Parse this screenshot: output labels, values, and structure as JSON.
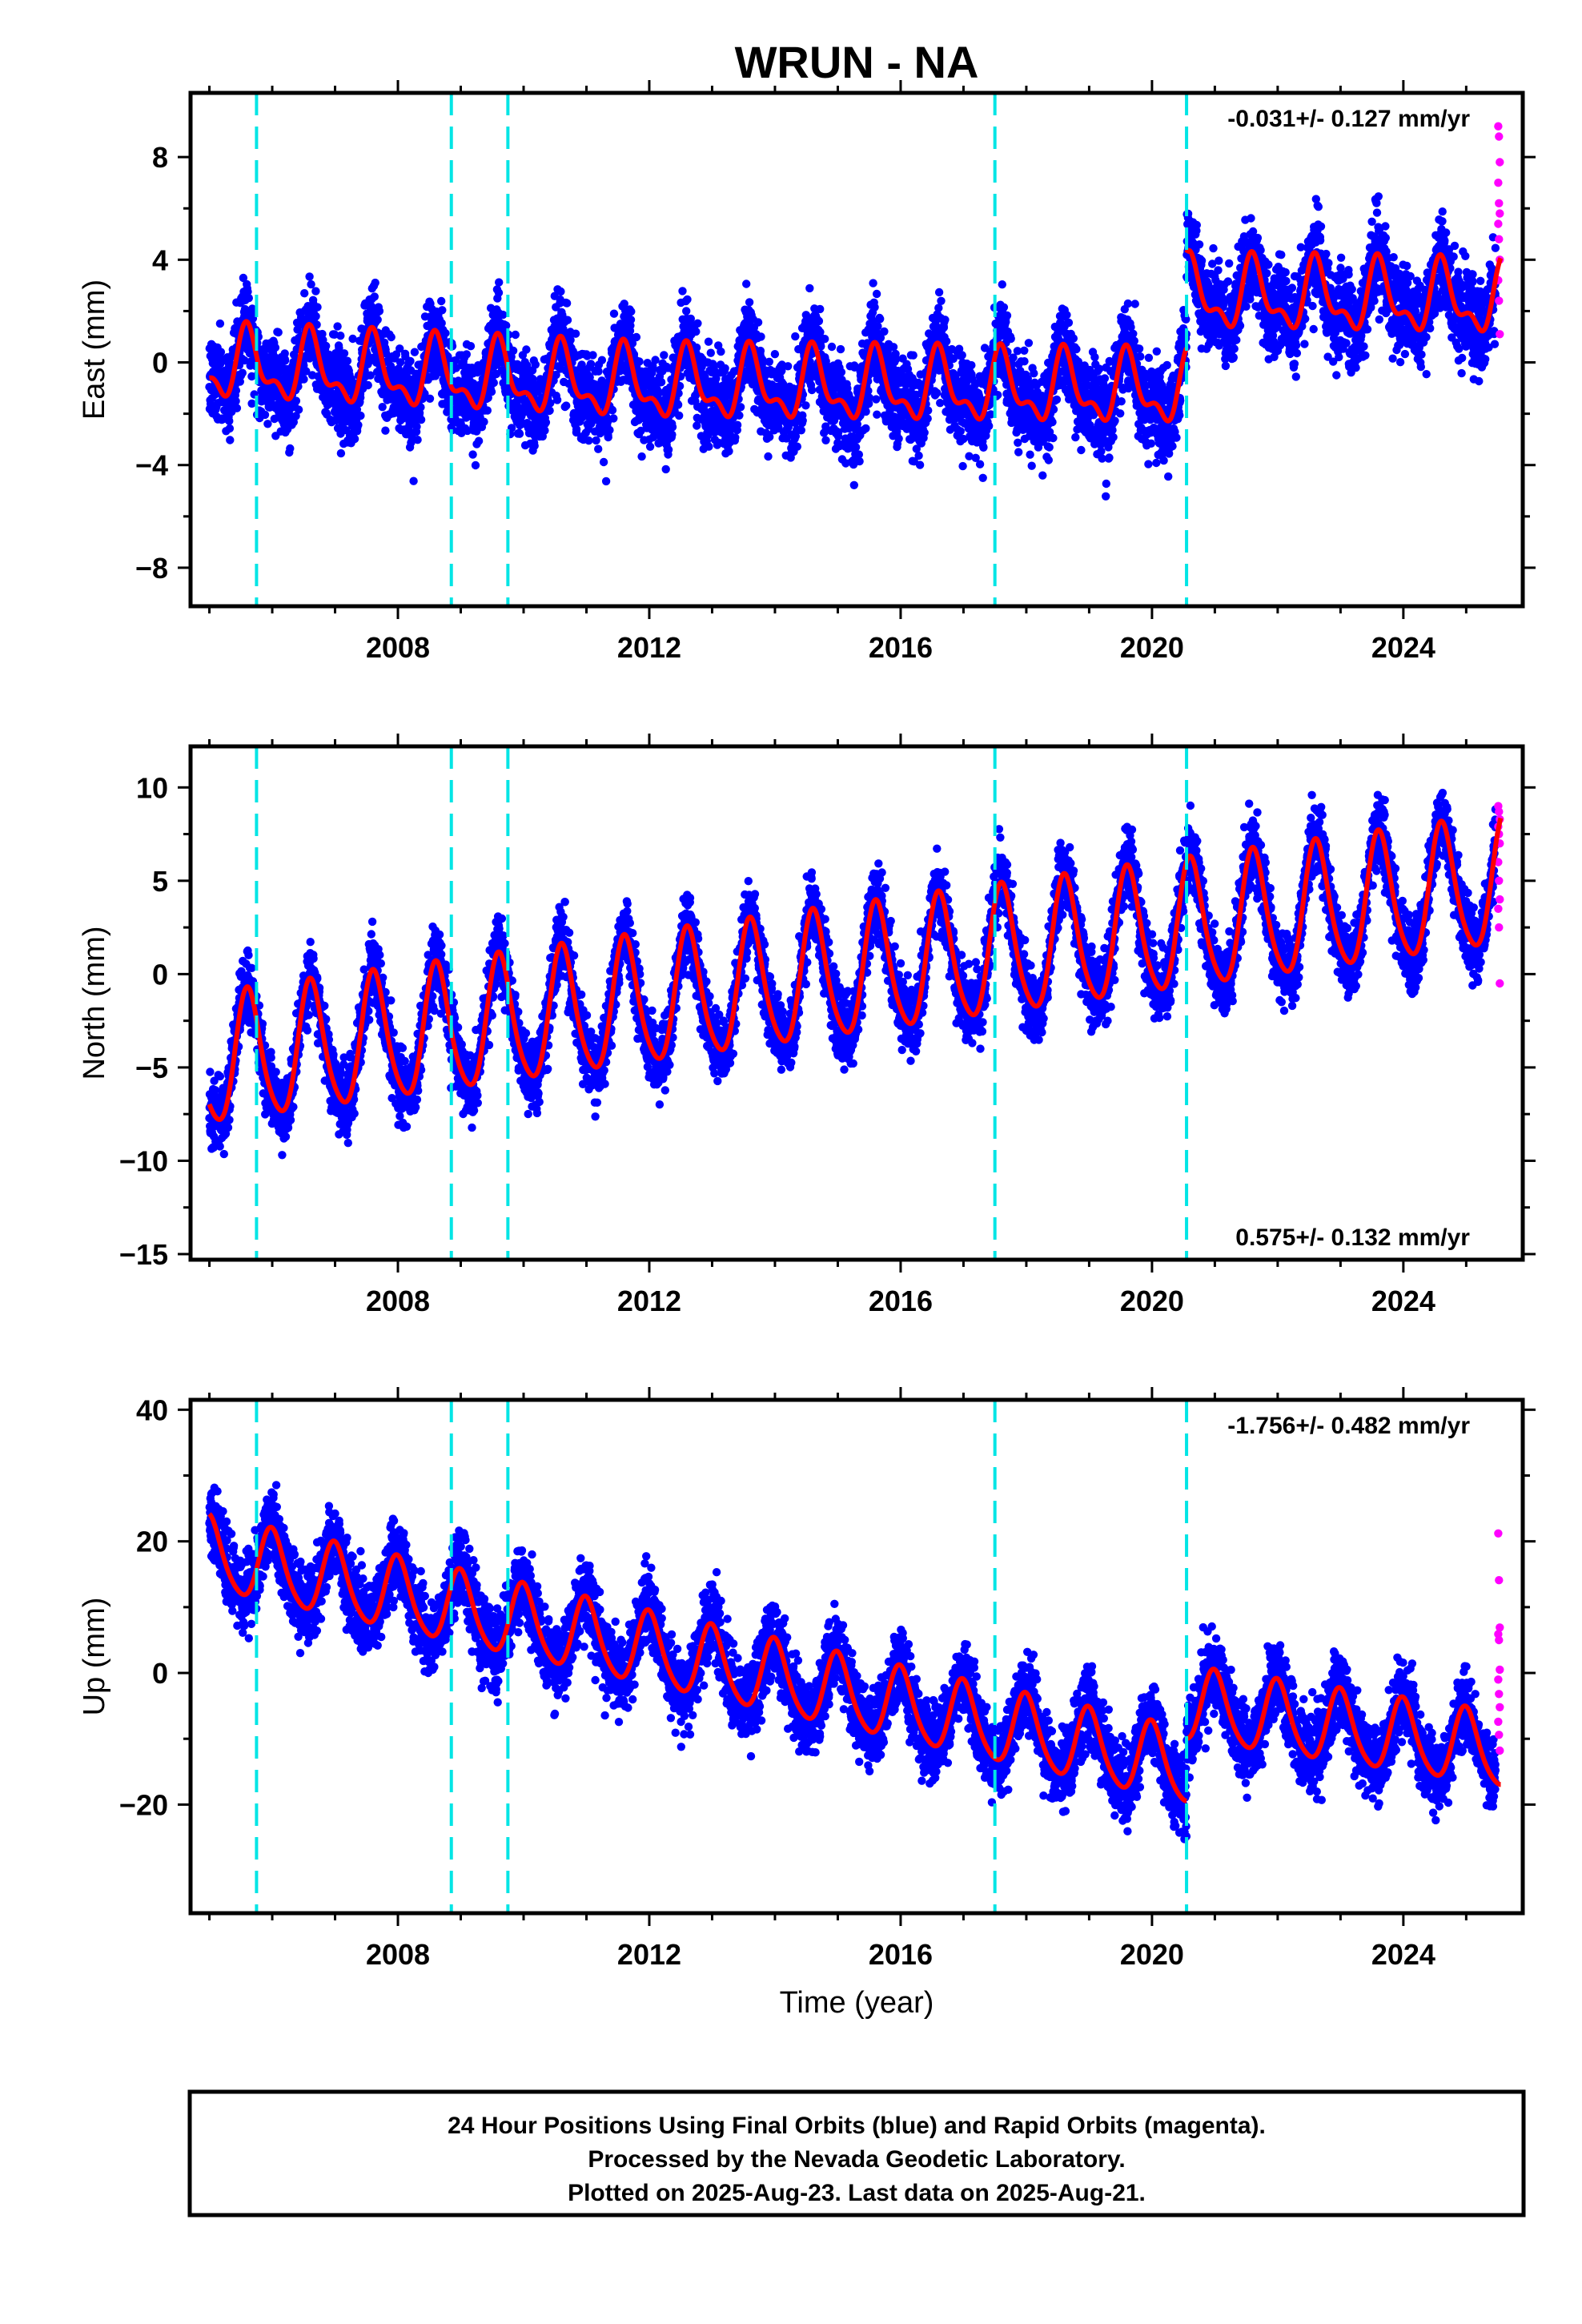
{
  "title": "WRUN - NA",
  "colors": {
    "final_orbits": "#0000ff",
    "rapid_orbits": "#ff00ff",
    "model_fit": "#ff0000",
    "equipment_change": "#00e5e5",
    "axes": "#000000"
  },
  "x_axis": {
    "label": "Time (year)",
    "ticks": [
      2008,
      2012,
      2016,
      2020,
      2024
    ],
    "xlim": [
      2004.7,
      2025.9
    ]
  },
  "chart_data": [
    {
      "type": "scatter",
      "name": "east",
      "ylabel": "East (mm)",
      "ylim": [
        -9.5,
        10.5
      ],
      "yticks": [
        -8,
        -4,
        0,
        4,
        8
      ],
      "rate_label": "-0.031+/- 0.127 mm/yr",
      "rate_position": "top-right",
      "start": 2005.0,
      "end": 2025.55,
      "seasonal": {
        "amp1": 1.2,
        "amp2": 0.6,
        "phase": 0.62
      },
      "segments": [
        {
          "from": 2005.0,
          "to": 2012.0,
          "offset_start": -0.1,
          "offset_end": -0.9
        },
        {
          "from": 2012.0,
          "to": 2020.55,
          "offset_start": -0.9,
          "offset_end": -1.1
        },
        {
          "from": 2020.55,
          "to": 2025.55,
          "offset_start": 2.6,
          "offset_end": 2.4
        }
      ],
      "noise_sd": 1.2,
      "rapid_points": [
        9.2,
        8.8,
        7.8,
        7.0,
        6.2,
        5.8,
        5.4,
        4.8,
        4.0,
        3.2,
        2.4,
        1.1
      ]
    },
    {
      "type": "scatter",
      "name": "north",
      "ylabel": "North (mm)",
      "ylim": [
        -15.3,
        12.2
      ],
      "yticks": [
        -15,
        -10,
        -5,
        0,
        5,
        10
      ],
      "rate_label": "0.575+/- 0.132 mm/yr",
      "rate_position": "bottom-right",
      "start": 2005.0,
      "end": 2025.55,
      "seasonal": {
        "amp1": 3.4,
        "amp2": 0.5,
        "phase": 0.62
      },
      "segments": [
        {
          "from": 2005.0,
          "to": 2025.55,
          "offset_start": -4.8,
          "offset_end": 4.8
        }
      ],
      "noise_sd": 1.3,
      "rapid_points": [
        9.0,
        8.7,
        8.3,
        7.9,
        7.5,
        7.0,
        6.0,
        5.0,
        4.0,
        3.5,
        2.5,
        -0.5
      ]
    },
    {
      "type": "scatter",
      "name": "up",
      "ylabel": "Up (mm)",
      "ylim": [
        -36.5,
        41.5
      ],
      "yticks": [
        -20,
        0,
        20,
        40
      ],
      "rate_label": "-1.756+/- 0.482 mm/yr",
      "rate_position": "top-right",
      "start": 2005.0,
      "end": 2025.55,
      "seasonal": {
        "amp1": 5.5,
        "amp2": 0.8,
        "phase": 0.0
      },
      "segments": [
        {
          "from": 2005.0,
          "to": 2020.55,
          "offset_start": 18.0,
          "offset_end": -14.5
        },
        {
          "from": 2020.55,
          "to": 2025.55,
          "offset_start": -5.0,
          "offset_end": -12.0
        }
      ],
      "noise_sd": 4.0,
      "rapid_points": [
        21.2,
        14.1,
        6.9,
        5.9,
        5.0,
        0.5,
        -1.0,
        -3.2,
        -5.2,
        -7.4,
        -9.4,
        -11.8
      ]
    }
  ],
  "equipment_changes": [
    2005.75,
    2008.85,
    2009.75,
    2017.5,
    2020.55
  ],
  "footer": {
    "line1": "24 Hour Positions Using Final Orbits (blue) and Rapid Orbits (magenta).",
    "line2": "Processed by the Nevada Geodetic Laboratory.",
    "line3": "Plotted on 2025-Aug-23. Last data on 2025-Aug-21."
  }
}
